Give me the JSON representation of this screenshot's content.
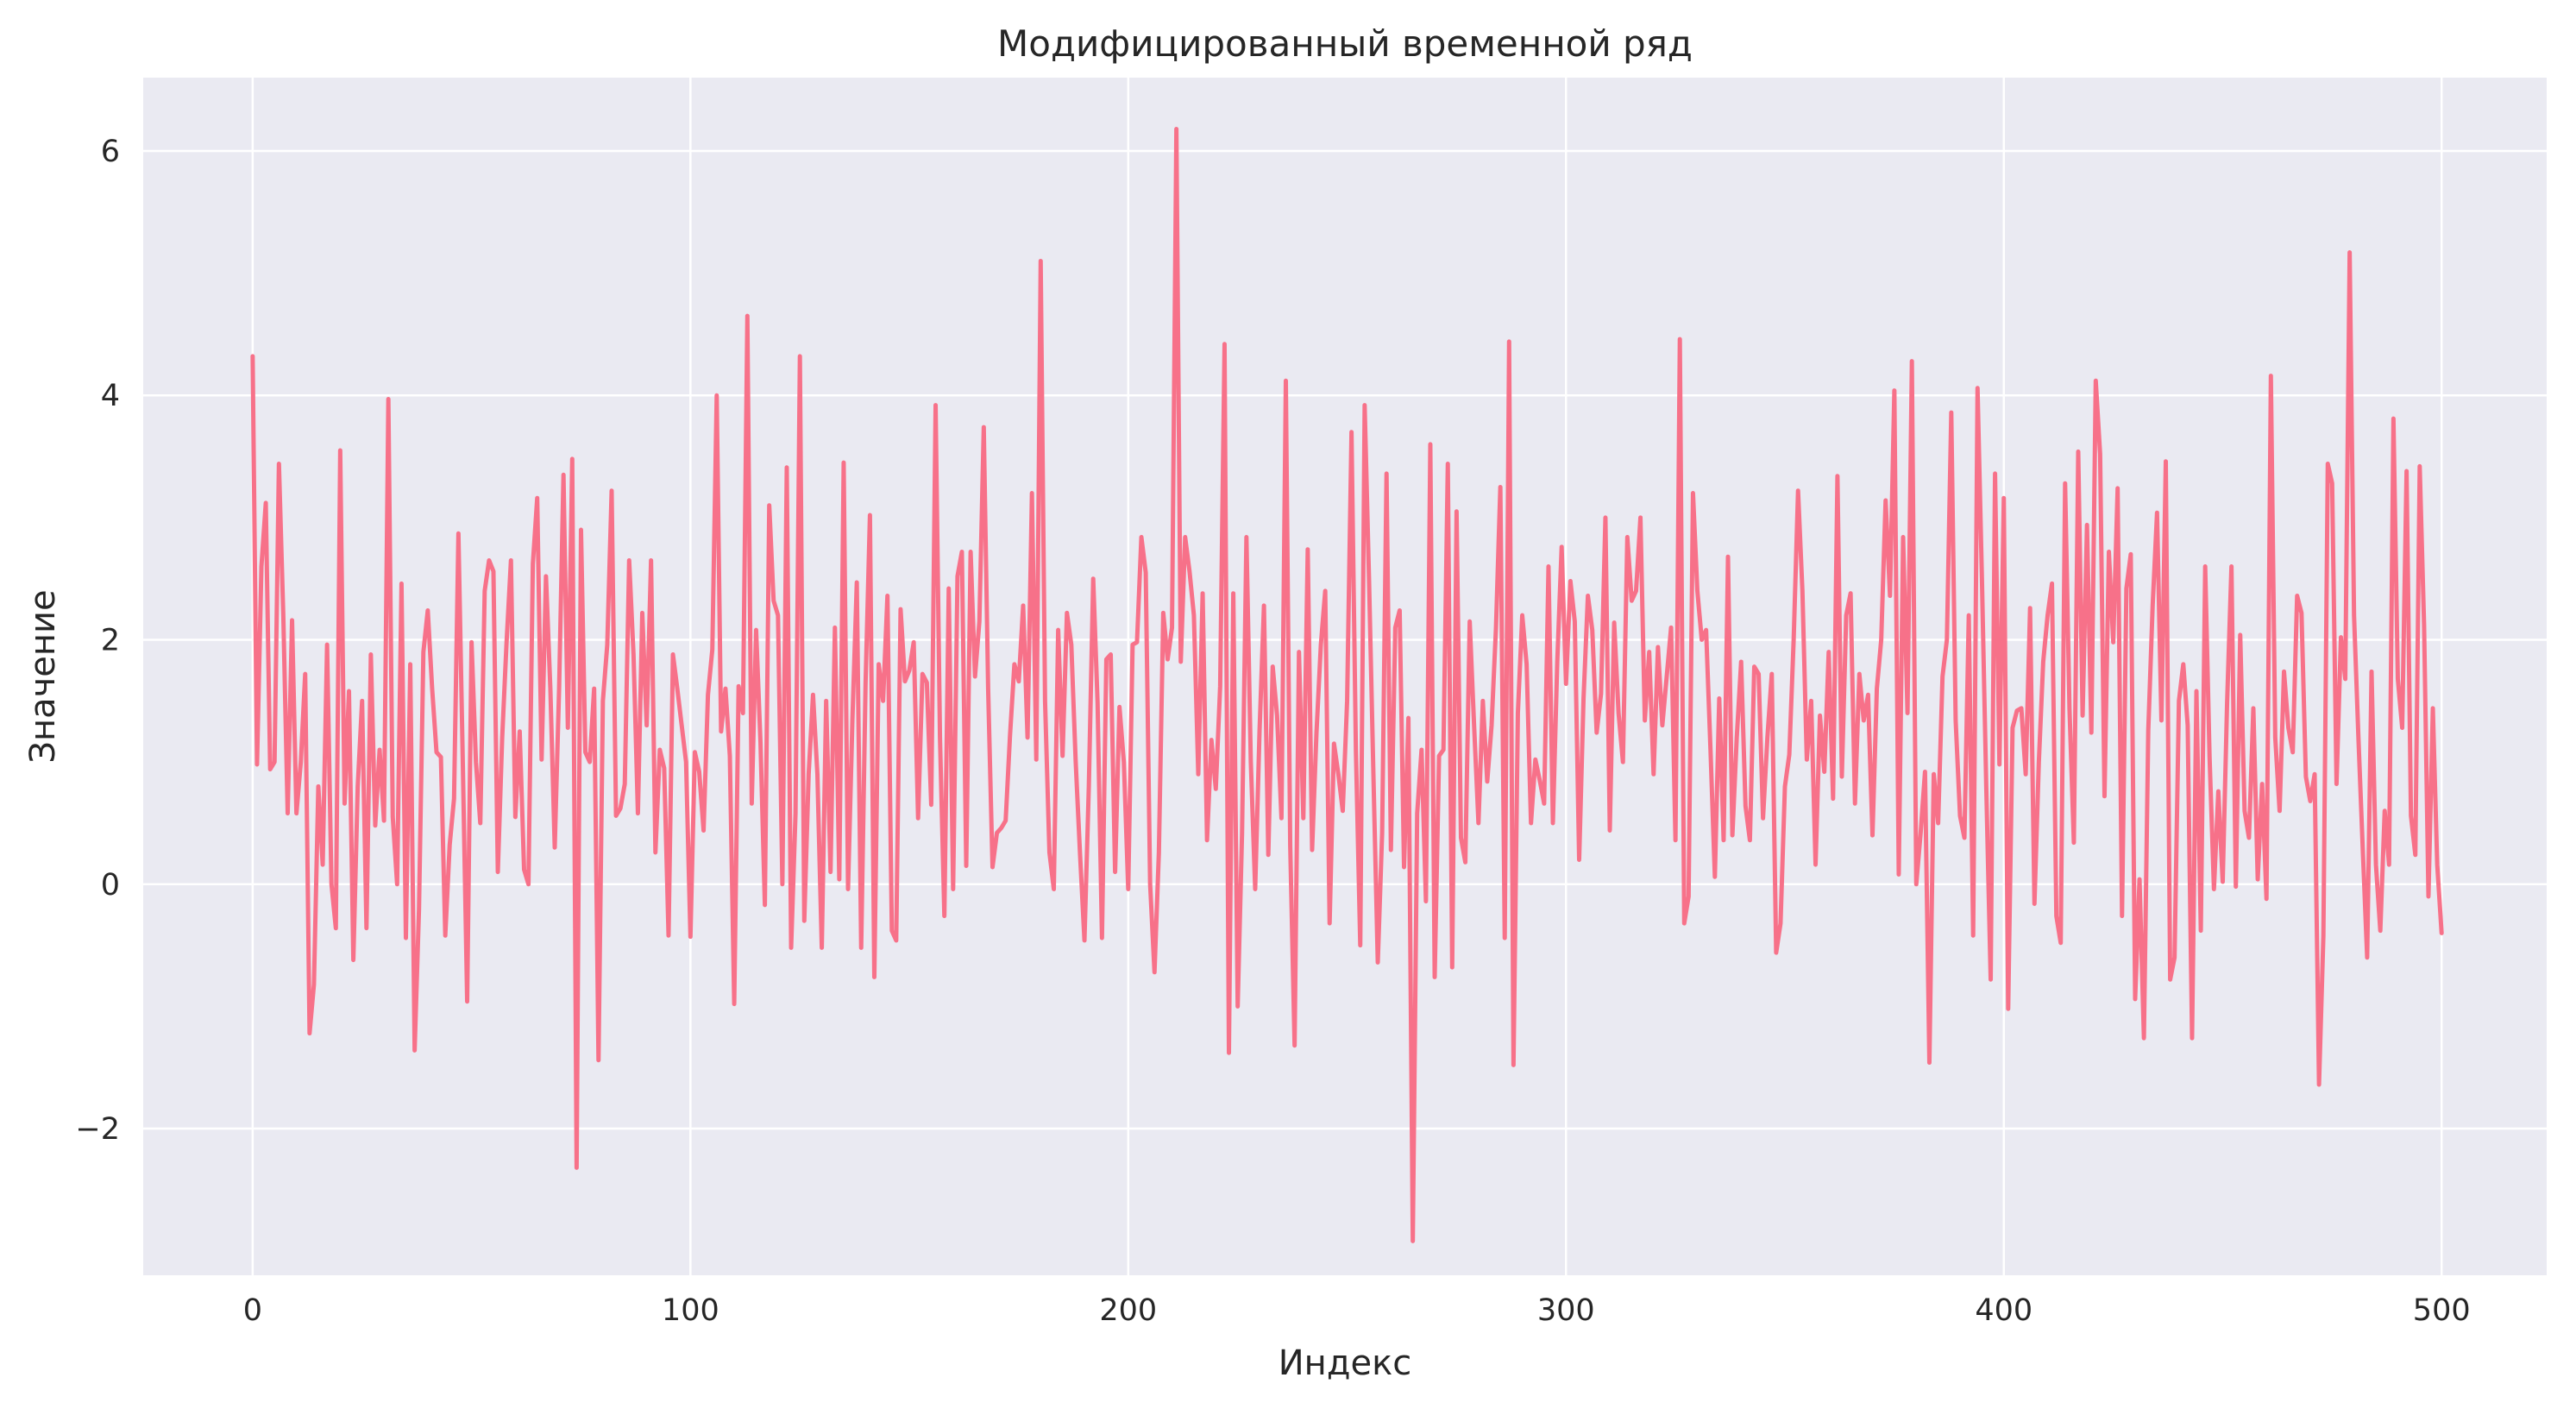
{
  "chart_data": {
    "type": "line",
    "title": "Модифицированный временной ряд",
    "xlabel": "Индекс",
    "ylabel": "Значение",
    "xlim": [
      -25,
      524
    ],
    "ylim": [
      -3.2,
      6.6
    ],
    "x_ticks": [
      0,
      100,
      200,
      300,
      400,
      500
    ],
    "x_tick_labels": [
      "0",
      "100",
      "200",
      "300",
      "400",
      "500"
    ],
    "y_ticks": [
      -2,
      0,
      2,
      4,
      6
    ],
    "y_tick_labels": [
      "−2",
      "0",
      "2",
      "4",
      "6"
    ],
    "grid": true,
    "colors": {
      "background": "#eaeaf2",
      "grid": "#ffffff",
      "line": "#f77189"
    },
    "series": [
      {
        "x_start": 0,
        "x_step": 1,
        "values": [
          4.32,
          0.98,
          2.6,
          3.12,
          0.94,
          1.0,
          3.44,
          2.2,
          0.58,
          2.16,
          0.58,
          1.0,
          1.72,
          -1.22,
          -0.82,
          0.8,
          0.16,
          1.96,
          0.0,
          -0.36,
          3.55,
          0.66,
          1.58,
          -0.62,
          0.8,
          1.5,
          -0.36,
          1.88,
          0.48,
          1.1,
          0.52,
          3.97,
          0.55,
          0.0,
          2.46,
          -0.44,
          1.8,
          -1.36,
          -0.2,
          1.9,
          2.24,
          1.6,
          1.08,
          1.04,
          -0.42,
          0.32,
          0.7,
          2.87,
          1.0,
          -0.96,
          1.98,
          1.0,
          0.5,
          2.4,
          2.65,
          2.56,
          0.1,
          1.2,
          1.98,
          2.65,
          0.55,
          1.25,
          0.12,
          0.0,
          2.62,
          3.16,
          1.02,
          2.52,
          1.6,
          0.3,
          1.6,
          3.35,
          1.28,
          3.48,
          -2.32,
          2.9,
          1.08,
          1.0,
          1.6,
          -1.44,
          1.5,
          1.96,
          3.22,
          0.56,
          0.62,
          0.82,
          2.65,
          1.88,
          0.58,
          2.22,
          1.3,
          2.65,
          0.26,
          1.1,
          0.95,
          -0.42,
          1.88,
          1.6,
          1.3,
          1.0,
          -0.43,
          1.08,
          0.92,
          0.44,
          1.55,
          1.92,
          4.0,
          1.25,
          1.6,
          1.05,
          -0.98,
          1.62,
          1.4,
          4.65,
          0.66,
          2.08,
          1.16,
          -0.17,
          3.1,
          2.32,
          2.2,
          0.0,
          3.41,
          -0.52,
          0.58,
          4.32,
          -0.3,
          0.9,
          1.55,
          0.9,
          -0.52,
          1.5,
          0.1,
          2.1,
          0.04,
          3.45,
          -0.04,
          1.35,
          2.47,
          -0.52,
          1.64,
          3.02,
          -0.76,
          1.8,
          1.5,
          2.36,
          -0.38,
          -0.46,
          2.25,
          1.66,
          1.75,
          1.98,
          0.54,
          1.72,
          1.65,
          0.65,
          3.92,
          1.2,
          -0.26,
          2.42,
          -0.04,
          2.52,
          2.72,
          0.15,
          2.72,
          1.7,
          2.15,
          3.74,
          1.6,
          0.14,
          0.42,
          0.46,
          0.52,
          1.22,
          1.8,
          1.66,
          2.28,
          1.2,
          3.2,
          1.02,
          5.1,
          1.5,
          0.26,
          -0.04,
          2.08,
          1.05,
          2.22,
          1.96,
          1.0,
          0.24,
          -0.46,
          0.8,
          2.5,
          1.48,
          -0.44,
          1.84,
          1.88,
          0.1,
          1.45,
          1.0,
          -0.04,
          1.96,
          1.98,
          2.84,
          2.55,
          0.0,
          -0.72,
          0.26,
          2.22,
          1.84,
          2.1,
          6.18,
          1.82,
          2.84,
          2.56,
          2.2,
          0.9,
          2.38,
          0.36,
          1.18,
          0.78,
          1.62,
          4.42,
          -1.38,
          2.38,
          -1.0,
          0.42,
          2.84,
          1.0,
          -0.04,
          1.26,
          2.28,
          0.24,
          1.78,
          1.38,
          0.54,
          4.12,
          0.32,
          -1.32,
          1.9,
          0.54,
          2.74,
          0.28,
          1.24,
          1.96,
          2.4,
          -0.32,
          1.15,
          0.9,
          0.6,
          1.5,
          3.7,
          1.1,
          -0.5,
          3.92,
          2.5,
          0.9,
          -0.64,
          0.42,
          3.36,
          0.28,
          2.1,
          2.24,
          0.14,
          1.36,
          -2.92,
          0.58,
          1.1,
          -0.14,
          3.6,
          -0.76,
          1.05,
          1.1,
          3.44,
          -0.68,
          3.05,
          0.38,
          0.18,
          2.15,
          1.3,
          0.5,
          1.5,
          0.84,
          1.3,
          2.1,
          3.25,
          -0.44,
          4.44,
          -1.48,
          1.4,
          2.2,
          1.8,
          0.5,
          1.02,
          0.85,
          0.66,
          2.6,
          0.5,
          1.82,
          2.76,
          1.64,
          2.48,
          2.15,
          0.2,
          1.52,
          2.36,
          2.08,
          1.24,
          1.56,
          3.0,
          0.44,
          2.14,
          1.4,
          1.0,
          2.84,
          2.32,
          2.4,
          3.0,
          1.34,
          1.9,
          0.9,
          1.94,
          1.3,
          1.7,
          2.1,
          0.36,
          4.46,
          -0.32,
          -0.1,
          3.2,
          2.4,
          2.0,
          2.08,
          1.1,
          0.06,
          1.52,
          0.36,
          2.68,
          0.4,
          1.2,
          1.82,
          0.64,
          0.36,
          1.78,
          1.72,
          0.54,
          1.2,
          1.72,
          -0.56,
          -0.32,
          0.8,
          1.06,
          2.0,
          3.22,
          2.4,
          1.02,
          1.5,
          0.16,
          1.38,
          0.92,
          1.9,
          0.7,
          3.34,
          0.88,
          2.2,
          2.38,
          0.66,
          1.72,
          1.34,
          1.55,
          0.4,
          1.6,
          2.0,
          3.14,
          2.36,
          4.04,
          0.08,
          2.84,
          1.4,
          4.28,
          0.0,
          0.42,
          0.92,
          -1.46,
          0.9,
          0.5,
          1.7,
          2.0,
          3.86,
          1.34,
          0.56,
          0.38,
          2.2,
          -0.42,
          4.06,
          2.5,
          0.78,
          -0.78,
          3.36,
          0.98,
          3.16,
          -1.02,
          1.28,
          1.42,
          1.44,
          0.9,
          2.26,
          -0.16,
          1.0,
          1.82,
          2.2,
          2.46,
          -0.26,
          -0.48,
          3.28,
          1.44,
          0.34,
          3.54,
          1.38,
          2.94,
          1.24,
          4.12,
          3.52,
          0.72,
          2.72,
          1.98,
          3.24,
          -0.26,
          2.42,
          2.7,
          -0.94,
          0.04,
          -1.26,
          1.26,
          2.28,
          3.04,
          1.34,
          3.46,
          -0.78,
          -0.6,
          1.5,
          1.8,
          1.3,
          -1.26,
          1.58,
          -0.38,
          2.6,
          1.04,
          -0.04,
          0.76,
          0.02,
          1.48,
          2.6,
          -0.02,
          2.04,
          0.6,
          0.38,
          1.44,
          0.04,
          0.82,
          -0.12,
          4.16,
          1.2,
          0.6,
          1.74,
          1.28,
          1.08,
          2.36,
          2.22,
          0.88,
          0.68,
          0.9,
          -1.64,
          -0.42,
          3.44,
          3.28,
          0.82,
          2.02,
          1.68,
          5.17,
          2.2,
          1.2,
          0.28,
          -0.6,
          1.74,
          0.16,
          -0.38,
          0.6,
          0.16,
          3.81,
          1.68,
          1.28,
          3.38,
          0.56,
          0.24,
          3.42,
          2.12,
          -0.1,
          1.44,
          0.16,
          -0.4
        ]
      }
    ]
  }
}
